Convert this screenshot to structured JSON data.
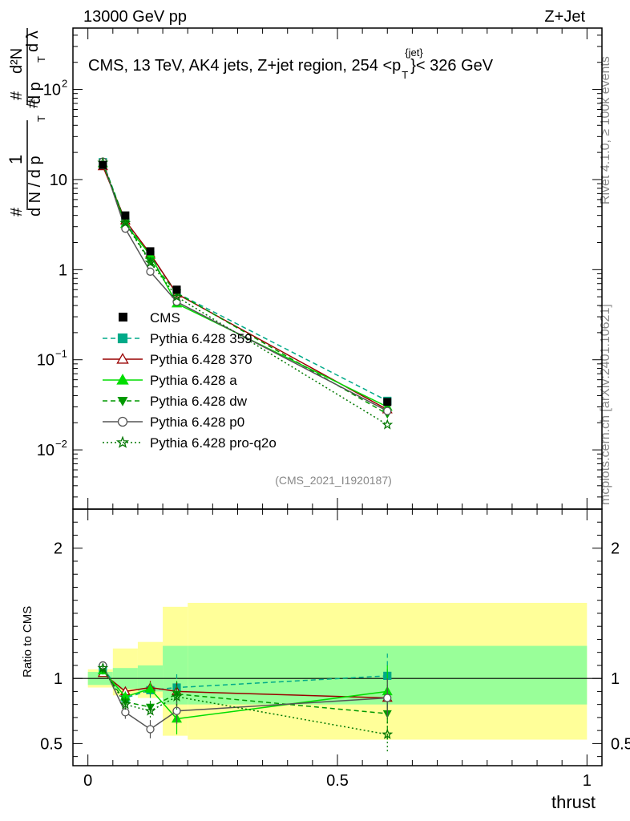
{
  "header": {
    "left": "13000 GeV pp",
    "right": "Z+Jet"
  },
  "side_labels": {
    "rivet": "Rivet 4.1.0, ≥ 100k events",
    "mcplots": "mcplots.cern.ch [arXiv:2401.10621]"
  },
  "colors": {
    "cms": "#000000",
    "p359": "#00aa88",
    "p370": "#990000",
    "pa": "#00dd00",
    "pdw": "#009900",
    "pp0": "#555555",
    "pq2o": "#007700",
    "band_yellow": "#ffff99",
    "band_green": "#99ff99"
  },
  "chart_data": {
    "type": "line",
    "title": "CMS, 13 TeV, AK4 jets, Z+jet region, 254 <p_T^{jet}>< 326 GeV",
    "title_parts": {
      "prefix": "CMS, 13 TeV, AK4 jets, Z+jet region, 254 <p",
      "sub": "T",
      "sup": "{jet}",
      "suffix": "}< 326 GeV"
    },
    "watermark": "(CMS_2021_I1920187)",
    "xlabel": "thrust",
    "ylabel_main": "1/(dN/dp_T) d²N/(dp_T dλ)",
    "ylabel_parts": {
      "hash1": "#",
      "one": "1",
      "dN": "d N / d p",
      "T1": "T",
      "hash2": "#",
      "hash3": "#",
      "d2N": "d²N",
      "dpT": "d p",
      "T2": "T",
      "dl": "d λ"
    },
    "ylabel_ratio": "Ratio to CMS",
    "xlim": [
      -0.03,
      1.03
    ],
    "ylim_main": [
      0.0022,
      480
    ],
    "ylim_ratio": [
      0.33,
      2.3
    ],
    "x_ticks": [
      {
        "value": 0,
        "label": "0"
      },
      {
        "value": 0.5,
        "label": "0.5"
      },
      {
        "value": 1,
        "label": "1"
      }
    ],
    "y_ticks_main": [
      {
        "value": 0.01,
        "base": "10",
        "exp": "−2"
      },
      {
        "value": 0.1,
        "base": "10",
        "exp": "−1"
      },
      {
        "value": 1,
        "base": "1",
        "exp": ""
      },
      {
        "value": 10,
        "base": "10",
        "exp": ""
      },
      {
        "value": 100,
        "base": "10",
        "exp": "2"
      }
    ],
    "y_ticks_ratio": [
      {
        "value": 0.5,
        "label": "0.5"
      },
      {
        "value": 1,
        "label": "1"
      },
      {
        "value": 2,
        "label": "2"
      }
    ],
    "bins": [
      {
        "lo": 0.0,
        "hi": 0.05
      },
      {
        "lo": 0.05,
        "hi": 0.1
      },
      {
        "lo": 0.1,
        "hi": 0.15
      },
      {
        "lo": 0.15,
        "hi": 0.2
      },
      {
        "lo": 0.2,
        "hi": 1.0
      }
    ],
    "x": [
      0.03,
      0.075,
      0.125,
      0.178,
      0.6
    ],
    "data": {
      "name": "CMS",
      "values": [
        14.5,
        4.0,
        1.6,
        0.6,
        0.034
      ],
      "band_green": [
        [
          0.95,
          1.05
        ],
        [
          0.92,
          1.08
        ],
        [
          0.9,
          1.1
        ],
        [
          0.8,
          1.25
        ],
        [
          0.8,
          1.25
        ]
      ],
      "band_yellow": [
        [
          0.93,
          1.07
        ],
        [
          0.87,
          1.23
        ],
        [
          0.85,
          1.28
        ],
        [
          0.56,
          1.55
        ],
        [
          0.53,
          1.58
        ]
      ]
    },
    "legend": [
      {
        "key": "cms",
        "label": "CMS"
      },
      {
        "key": "p359",
        "label": "Pythia 6.428 359"
      },
      {
        "key": "p370",
        "label": "Pythia 6.428 370"
      },
      {
        "key": "pa",
        "label": "Pythia 6.428 a"
      },
      {
        "key": "pdw",
        "label": "Pythia 6.428 dw"
      },
      {
        "key": "pp0",
        "label": "Pythia 6.428 p0"
      },
      {
        "key": "pq2o",
        "label": "Pythia 6.428 pro-q2o"
      }
    ],
    "series": [
      {
        "key": "p359",
        "name": "Pythia 6.428 359",
        "marker": "square",
        "dash": "dash",
        "values": [
          15.6,
          3.4,
          1.45,
          0.55,
          0.035
        ],
        "ratio": [
          1.08,
          0.85,
          0.91,
          0.93,
          1.02
        ],
        "ratio_err": [
          0.03,
          0.05,
          0.06,
          0.12,
          0.17
        ]
      },
      {
        "key": "p370",
        "name": "Pythia 6.428 370",
        "marker": "triangle-open",
        "dash": "solid",
        "values": [
          14.0,
          3.5,
          1.5,
          0.54,
          0.028
        ],
        "ratio": [
          1.04,
          0.9,
          0.93,
          0.9,
          0.85
        ],
        "ratio_err": [
          0.02,
          0.03,
          0.05,
          0.07,
          0.1
        ]
      },
      {
        "key": "pa",
        "name": "Pythia 6.428 a",
        "marker": "triangle",
        "dash": "solid",
        "values": [
          15.1,
          3.2,
          1.45,
          0.42,
          0.03
        ],
        "ratio": [
          1.06,
          0.86,
          0.92,
          0.69,
          0.9
        ],
        "ratio_err": [
          0.03,
          0.04,
          0.05,
          0.12,
          0.2
        ]
      },
      {
        "key": "pdw",
        "name": "Pythia 6.428 dw",
        "marker": "triangle-down",
        "dash": "dash",
        "values": [
          15.3,
          3.3,
          1.25,
          0.55,
          0.025
        ],
        "ratio": [
          1.07,
          0.82,
          0.78,
          0.88,
          0.73
        ],
        "ratio_err": [
          0.03,
          0.04,
          0.05,
          0.1,
          0.2
        ]
      },
      {
        "key": "pp0",
        "name": "Pythia 6.428 p0",
        "marker": "circle-open",
        "dash": "solid",
        "values": [
          15.8,
          2.85,
          0.95,
          0.44,
          0.027
        ],
        "ratio": [
          1.1,
          0.74,
          0.61,
          0.75,
          0.85
        ],
        "ratio_err": [
          0.03,
          0.05,
          0.07,
          0.1,
          0.15
        ]
      },
      {
        "key": "pq2o",
        "name": "Pythia 6.428 pro-q2o",
        "marker": "star",
        "dash": "dot",
        "values": [
          15.4,
          3.3,
          1.2,
          0.5,
          0.019
        ],
        "ratio": [
          1.08,
          0.8,
          0.75,
          0.86,
          0.57
        ],
        "ratio_err": [
          0.03,
          0.04,
          0.05,
          0.1,
          0.13
        ]
      }
    ]
  }
}
